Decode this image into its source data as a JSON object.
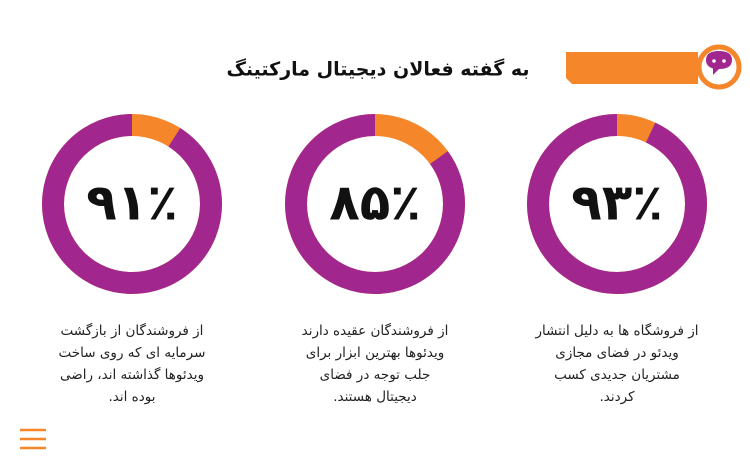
{
  "header": {
    "title": "به گفته فعالان دیجیتال مارکتینگ"
  },
  "chart_data": [
    {
      "type": "donut",
      "values": [
        93
      ],
      "value_labels": [
        "۹۳٪"
      ],
      "color": "#a1278f",
      "rest_color": "#f5862a",
      "caption": [
        "از فروشگاه ها به دلیل انتشار",
        "ویدئو در فضای مجازی",
        "مشتریان جدیدی کسب",
        "کردند."
      ]
    },
    {
      "type": "donut",
      "values": [
        85
      ],
      "value_labels": [
        "۸۵٪"
      ],
      "color": "#a1278f",
      "rest_color": "#f5862a",
      "caption": [
        "از فروشندگان عقیده دارند",
        "ویدئوها بهترین ابزار برای",
        "جلب توجه در فضای",
        "دیجیتال هستند."
      ]
    },
    {
      "type": "donut",
      "values": [
        91
      ],
      "value_labels": [
        "۹۱٪"
      ],
      "color": "#a1278f",
      "rest_color": "#f5862a",
      "caption": [
        "از فروشندگان از بازگشت",
        "سرمایه ای که روی ساخت",
        "ویدئوها گذاشته اند، راضی",
        "بوده اند."
      ]
    }
  ]
}
